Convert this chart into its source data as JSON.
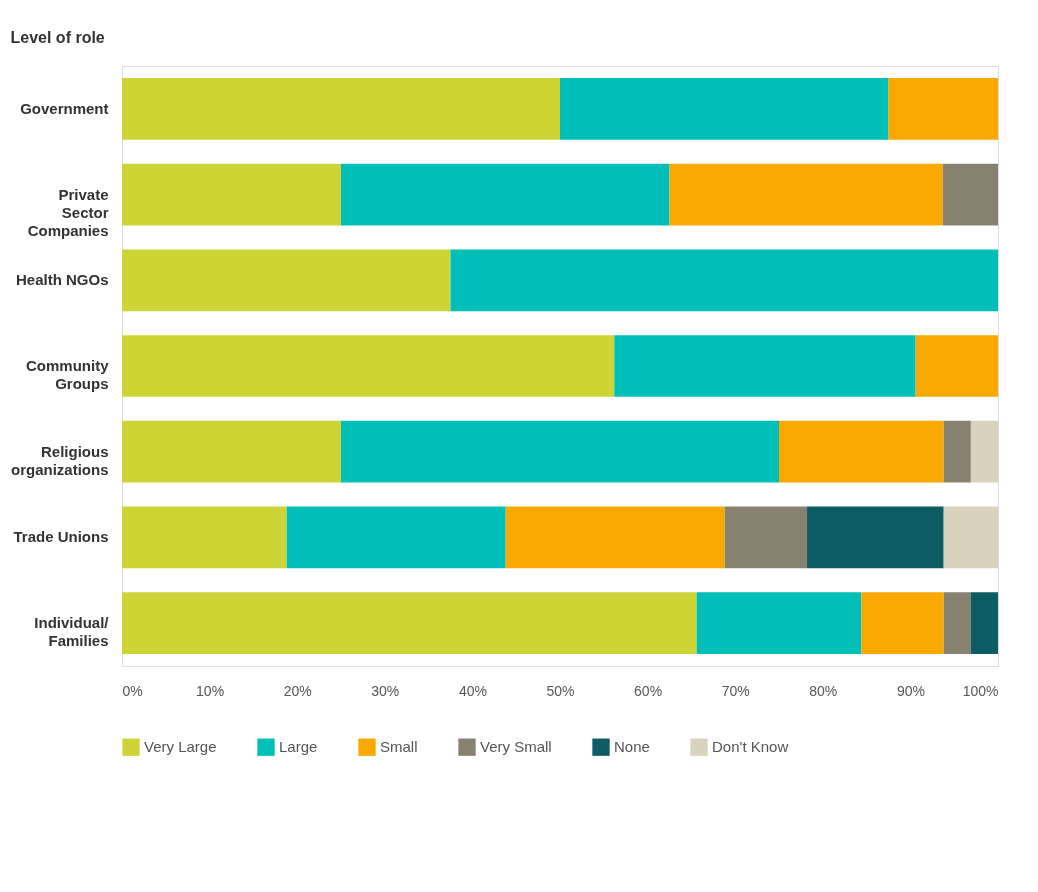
{
  "chart_data": {
    "type": "bar",
    "orientation": "horizontal",
    "stacked": true,
    "title": "Level of role",
    "categories": [
      "Government",
      "Private Sector Companies",
      "Health NGOs",
      "Community Groups",
      "Religious organizations",
      "Trade Unions",
      "Individual/ Families"
    ],
    "series": [
      {
        "name": "Very Large",
        "color": "#cdd436",
        "values": [
          50,
          25,
          37.5,
          56.2,
          25,
          18.8,
          65.6
        ]
      },
      {
        "name": "Large",
        "color": "#00bfb8",
        "values": [
          37.5,
          37.5,
          62.5,
          34.4,
          50,
          25,
          18.8
        ]
      },
      {
        "name": "Small",
        "color": "#f9a800",
        "values": [
          12.5,
          31.2,
          null,
          9.4,
          18.8,
          25,
          9.4
        ]
      },
      {
        "name": "Very Small",
        "color": "#878270",
        "values": [
          null,
          6.3,
          null,
          null,
          3.1,
          9.4,
          3.1
        ]
      },
      {
        "name": "None",
        "color": "#0d5c63",
        "values": [
          null,
          null,
          null,
          null,
          null,
          15.6,
          3.1
        ]
      },
      {
        "name": "Don't Know",
        "color": "#d9d3bd",
        "values": [
          null,
          null,
          null,
          null,
          3.1,
          6.2,
          null
        ]
      }
    ],
    "xlim": [
      0,
      100
    ],
    "xticks": [
      {
        "value": 0,
        "label": "0%"
      },
      {
        "value": 10,
        "label": "10%"
      },
      {
        "value": 20,
        "label": "20%"
      },
      {
        "value": 30,
        "label": "30%"
      },
      {
        "value": 40,
        "label": "40%"
      },
      {
        "value": 50,
        "label": "50%"
      },
      {
        "value": 60,
        "label": "60%"
      },
      {
        "value": 70,
        "label": "70%"
      },
      {
        "value": 80,
        "label": "80%"
      },
      {
        "value": 90,
        "label": "90%"
      },
      {
        "value": 100,
        "label": "100%"
      }
    ],
    "grid": false,
    "legend": "bottom"
  }
}
